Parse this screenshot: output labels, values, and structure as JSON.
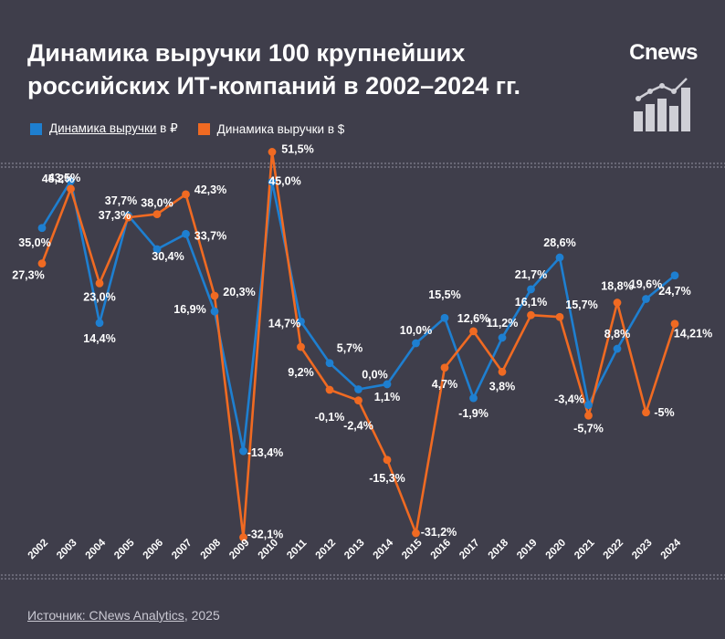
{
  "header": {
    "title_line1": "Динамика выручки 100 крупнейших",
    "title_line2": "российских ИТ-компаний в 2002–2024 гг.",
    "brand": "Cnews"
  },
  "legend": {
    "rub_link": "Динамика выручки",
    "rub_suffix": " в ₽",
    "usd_label": "Динамика выручки в $"
  },
  "colors": {
    "rub": "#1e7fd0",
    "usd": "#f06a22",
    "background": "#3f3e4b"
  },
  "source": {
    "prefix": "Источник: ",
    "link": "CNews Analytics",
    "suffix": ", 2025"
  },
  "chart_data": {
    "type": "line",
    "categories": [
      "2002",
      "2003",
      "2004",
      "2005",
      "2006",
      "2007",
      "2008",
      "2009",
      "2010",
      "2011",
      "2012",
      "2013",
      "2014",
      "2015",
      "2016",
      "2017",
      "2018",
      "2019",
      "2020",
      "2021",
      "2022",
      "2023",
      "2024"
    ],
    "series": [
      {
        "name": "Динамика выручки в ₽",
        "color": "#1e7fd0",
        "values": [
          35.0,
          45.2,
          14.4,
          37.7,
          30.4,
          33.7,
          16.9,
          -13.4,
          45.0,
          14.7,
          5.7,
          0.0,
          1.1,
          10.0,
          15.5,
          -1.9,
          11.2,
          21.7,
          28.6,
          -3.4,
          8.8,
          19.6,
          24.7
        ],
        "labels": [
          "35,0%",
          "45,2%",
          "14,4%",
          "37,7%",
          "30,4%",
          "33,7%",
          "16,9%",
          "-13,4%",
          "45,0%",
          "14,7%",
          "5,7%",
          "0,0%",
          "1,1%",
          "10,0%",
          "15,5%",
          "-1,9%",
          "11,2%",
          "21,7%",
          "28,6%",
          "-3,4%",
          "8,8%",
          "19,6%",
          "24,7%"
        ]
      },
      {
        "name": "Динамика выручки в $",
        "color": "#f06a22",
        "values": [
          27.3,
          43.5,
          23.0,
          37.3,
          38.0,
          42.3,
          20.3,
          -32.1,
          51.5,
          9.2,
          -0.1,
          -2.4,
          -15.3,
          -31.2,
          4.7,
          12.6,
          3.8,
          16.1,
          15.7,
          -5.7,
          18.8,
          -5.0,
          14.21
        ],
        "labels": [
          "27,3%",
          "43,5%",
          "23,0%",
          "37,3%",
          "38,0%",
          "42,3%",
          "20,3%",
          "-32,1%",
          "51,5%",
          "9,2%",
          "-0,1%",
          "-2,4%",
          "-15,3%",
          "-31,2%",
          "4,7%",
          "12,6%",
          "3,8%",
          "16,1%",
          "15,7%",
          "-5,7%",
          "18,8%",
          "-5%",
          "14,21%"
        ]
      }
    ],
    "ylim": [
      -35,
      55
    ],
    "grid": false,
    "legend_position": "top-left"
  }
}
